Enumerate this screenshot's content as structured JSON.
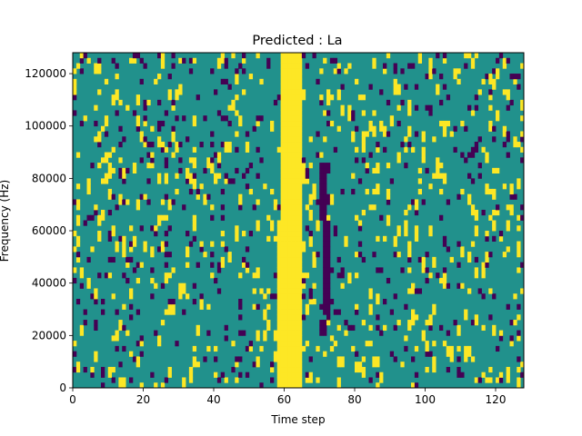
{
  "chart_data": {
    "type": "heatmap",
    "title": "Predicted : La",
    "xlabel": "Time step",
    "ylabel": "Frequency (Hz)",
    "xlim": [
      0,
      128
    ],
    "ylim": [
      0,
      128000
    ],
    "x_ticks": [
      0,
      20,
      40,
      60,
      80,
      100,
      120
    ],
    "y_ticks": [
      0,
      20000,
      40000,
      60000,
      80000,
      100000,
      120000
    ],
    "x_tick_labels": [
      "0",
      "20",
      "40",
      "60",
      "80",
      "100",
      "120"
    ],
    "y_tick_labels": [
      "0",
      "20000",
      "40000",
      "60000",
      "80000",
      "100000",
      "120000"
    ],
    "n_time_steps": 128,
    "n_freq_bins": 64,
    "colormap": "viridis",
    "colors": {
      "mid": "#21918c",
      "high": "#fde725",
      "low": "#440154"
    },
    "base_value": 0,
    "note_on_value": 1,
    "note_off_value": -1,
    "high_blocks": [
      {
        "t0": 59,
        "t1": 65,
        "f0": 0,
        "f1": 128000
      },
      {
        "t0": 58,
        "t1": 65,
        "f0": 0,
        "f1": 64000
      },
      {
        "t0": 61,
        "t1": 66,
        "f0": 80000,
        "f1": 86000
      }
    ],
    "low_blocks": [
      {
        "t0": 70,
        "t1": 72,
        "f0": 64000,
        "f1": 86000
      },
      {
        "t0": 71,
        "t1": 73,
        "f0": 28000,
        "f1": 64000
      },
      {
        "t0": 70,
        "t1": 72,
        "f0": 20000,
        "f1": 26000
      }
    ],
    "scatter_seed": 7,
    "scatter_density_high": 0.07,
    "scatter_density_low": 0.06
  }
}
